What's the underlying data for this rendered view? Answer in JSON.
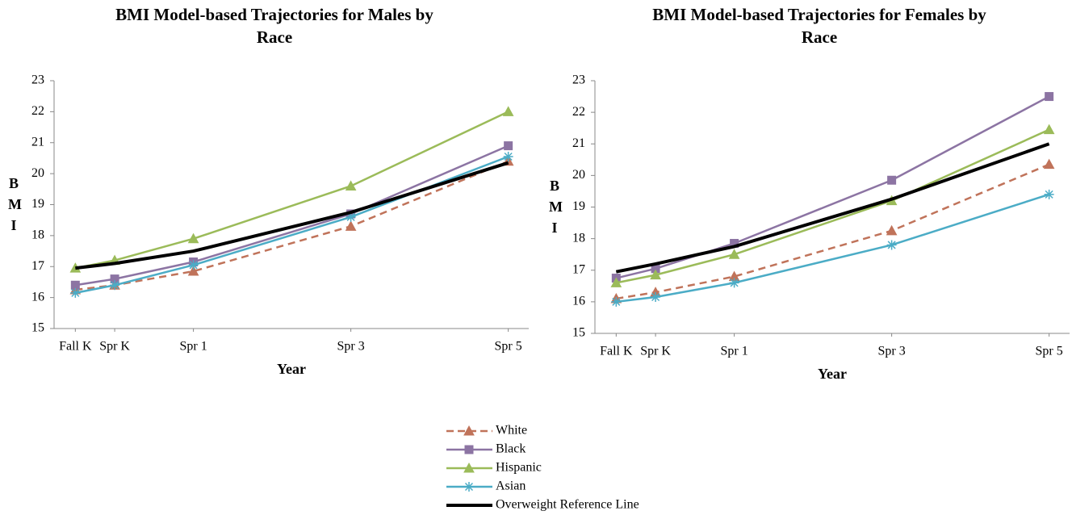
{
  "chart_data": [
    {
      "type": "line",
      "title": "BMI Model-based Trajectories for Males by Race",
      "x_label": "Year",
      "y_label": "BMI",
      "x": [
        0,
        0.5,
        1.5,
        3.5,
        5.5
      ],
      "xlim": [
        -0.27,
        5.76
      ],
      "xticks": [
        {
          "value": 0,
          "label": "Fall K"
        },
        {
          "value": 0.5,
          "label": "Spr K"
        },
        {
          "value": 1.5,
          "label": "Spr 1"
        },
        {
          "value": 3.5,
          "label": "Spr 3"
        },
        {
          "value": 5.5,
          "label": "Spr 5"
        }
      ],
      "ylim": [
        15,
        23
      ],
      "yticks": [
        15,
        16,
        17,
        18,
        19,
        20,
        21,
        22,
        23
      ],
      "series": [
        {
          "name": "White",
          "color": "#c0735a",
          "marker": "triangle",
          "dash": true,
          "values": [
            16.25,
            16.4,
            16.85,
            18.3,
            20.4
          ]
        },
        {
          "name": "Black",
          "color": "#8c74a3",
          "marker": "square",
          "dash": false,
          "values": [
            16.4,
            16.6,
            17.15,
            18.7,
            20.9
          ]
        },
        {
          "name": "Hispanic",
          "color": "#9bbb59",
          "marker": "triangle",
          "dash": false,
          "values": [
            16.95,
            17.2,
            17.9,
            19.6,
            22.0
          ]
        },
        {
          "name": "Asian",
          "color": "#4bacc6",
          "marker": "asterisk",
          "dash": false,
          "values": [
            16.15,
            16.4,
            17.05,
            18.6,
            20.55
          ]
        },
        {
          "name": "Overweight Reference Line",
          "color": "#000000",
          "marker": "none",
          "dash": false,
          "values": [
            16.95,
            17.1,
            17.5,
            18.75,
            20.35
          ]
        }
      ]
    },
    {
      "type": "line",
      "title": "BMI Model-based Trajectories for Females by Race",
      "x_label": "Year",
      "y_label": "BMI",
      "x": [
        0,
        0.5,
        1.5,
        3.5,
        5.5
      ],
      "xlim": [
        -0.27,
        5.76
      ],
      "xticks": [
        {
          "value": 0,
          "label": "Fall K"
        },
        {
          "value": 0.5,
          "label": "Spr K"
        },
        {
          "value": 1.5,
          "label": "Spr 1"
        },
        {
          "value": 3.5,
          "label": "Spr 3"
        },
        {
          "value": 5.5,
          "label": "Spr 5"
        }
      ],
      "ylim": [
        15,
        23
      ],
      "yticks": [
        15,
        16,
        17,
        18,
        19,
        20,
        21,
        22,
        23
      ],
      "series": [
        {
          "name": "White",
          "color": "#c0735a",
          "marker": "triangle",
          "dash": true,
          "values": [
            16.1,
            16.3,
            16.8,
            18.25,
            20.35
          ]
        },
        {
          "name": "Black",
          "color": "#8c74a3",
          "marker": "square",
          "dash": false,
          "values": [
            16.75,
            17.05,
            17.85,
            19.85,
            22.5
          ]
        },
        {
          "name": "Hispanic",
          "color": "#9bbb59",
          "marker": "triangle",
          "dash": false,
          "values": [
            16.6,
            16.85,
            17.5,
            19.2,
            21.45
          ]
        },
        {
          "name": "Asian",
          "color": "#4bacc6",
          "marker": "asterisk",
          "dash": false,
          "values": [
            16.0,
            16.15,
            16.6,
            17.8,
            19.4
          ]
        },
        {
          "name": "Overweight Reference Line",
          "color": "#000000",
          "marker": "none",
          "dash": false,
          "values": [
            16.95,
            17.2,
            17.75,
            19.25,
            21.0
          ]
        }
      ]
    }
  ]
}
